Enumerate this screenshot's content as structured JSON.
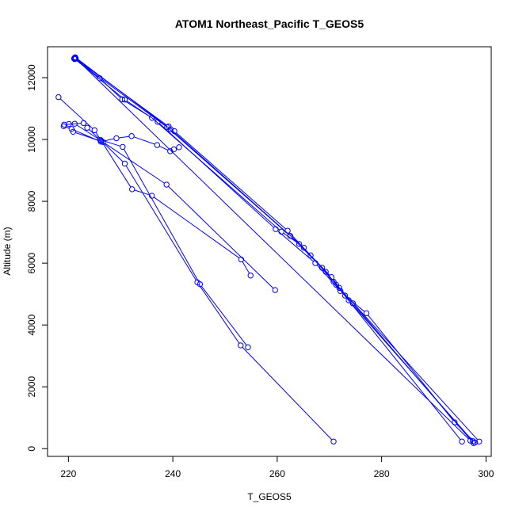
{
  "chart_data": {
    "type": "line",
    "title": "ATOM1 Northeast_Pacific T_GEOS5",
    "xlabel": "T_GEOS5",
    "ylabel": "Altitude (m)",
    "xlim": [
      216,
      301
    ],
    "ylim": [
      -250,
      13000
    ],
    "xticks": [
      220,
      240,
      260,
      280,
      300
    ],
    "yticks": [
      0,
      2000,
      4000,
      6000,
      8000,
      10000,
      12000
    ],
    "grid": false,
    "legend": "none",
    "color": "#0000ff",
    "series": [
      {
        "points": [
          [
            221.3,
            12650
          ],
          [
            226.0,
            11980
          ],
          [
            230.3,
            11300
          ],
          [
            236.0,
            10700
          ],
          [
            260.8,
            7020
          ],
          [
            264.2,
            6620
          ],
          [
            269.3,
            5720
          ],
          [
            271.3,
            5300
          ],
          [
            273.0,
            4950
          ],
          [
            277.1,
            4380
          ],
          [
            294.0,
            850
          ],
          [
            297.9,
            200
          ]
        ]
      },
      {
        "points": [
          [
            221.1,
            12620
          ],
          [
            230.8,
            11290
          ],
          [
            237.1,
            10570
          ],
          [
            259.7,
            7100
          ],
          [
            267.3,
            6000
          ],
          [
            272.1,
            5100
          ],
          [
            274.5,
            4700
          ],
          [
            297.6,
            180
          ]
        ]
      },
      {
        "points": [
          [
            221.2,
            12640
          ],
          [
            239.2,
            10420
          ],
          [
            240.3,
            10270
          ],
          [
            262.0,
            7050
          ],
          [
            266.4,
            6250
          ],
          [
            270.4,
            5550
          ],
          [
            273.7,
            4800
          ],
          [
            297.5,
            240
          ]
        ]
      },
      {
        "points": [
          [
            221.2,
            12600
          ],
          [
            238.9,
            10400
          ],
          [
            262.5,
            6880
          ],
          [
            268.6,
            5850
          ],
          [
            271.9,
            5200
          ],
          [
            298.7,
            230
          ]
        ]
      },
      {
        "points": [
          [
            221.3,
            12660
          ],
          [
            239.6,
            10330
          ],
          [
            265.1,
            6500
          ],
          [
            270.8,
            5400
          ],
          [
            295.4,
            230
          ]
        ]
      },
      {
        "points": [
          [
            221.4,
            12620
          ],
          [
            297.0,
            260
          ]
        ]
      },
      {
        "points": [
          [
            218.1,
            11370
          ],
          [
            225.0,
            10300
          ],
          [
            232.2,
            8390
          ],
          [
            236.0,
            8180
          ],
          [
            253.1,
            6120
          ],
          [
            254.9,
            5600
          ]
        ]
      },
      {
        "points": [
          [
            219.2,
            10480
          ],
          [
            222.9,
            10530
          ],
          [
            223.6,
            10380
          ],
          [
            226.1,
            9990
          ],
          [
            230.4,
            9760
          ],
          [
            245.2,
            5320
          ],
          [
            254.4,
            3280
          ]
        ]
      },
      {
        "points": [
          [
            219.1,
            10430
          ],
          [
            220.6,
            10340
          ],
          [
            226.2,
            9930
          ],
          [
            229.2,
            10040
          ],
          [
            232.1,
            10110
          ],
          [
            237.0,
            9820
          ],
          [
            239.5,
            9620
          ],
          [
            240.2,
            9680
          ],
          [
            241.2,
            9750
          ]
        ]
      },
      {
        "points": [
          [
            220.1,
            10500
          ],
          [
            221.2,
            10510
          ],
          [
            226.3,
            9960
          ],
          [
            230.8,
            9220
          ],
          [
            244.7,
            5380
          ],
          [
            253.0,
            3340
          ],
          [
            270.8,
            230
          ]
        ]
      },
      {
        "points": [
          [
            220.9,
            10250
          ],
          [
            226.6,
            9920
          ],
          [
            238.8,
            8540
          ],
          [
            259.6,
            5130
          ]
        ]
      }
    ]
  }
}
